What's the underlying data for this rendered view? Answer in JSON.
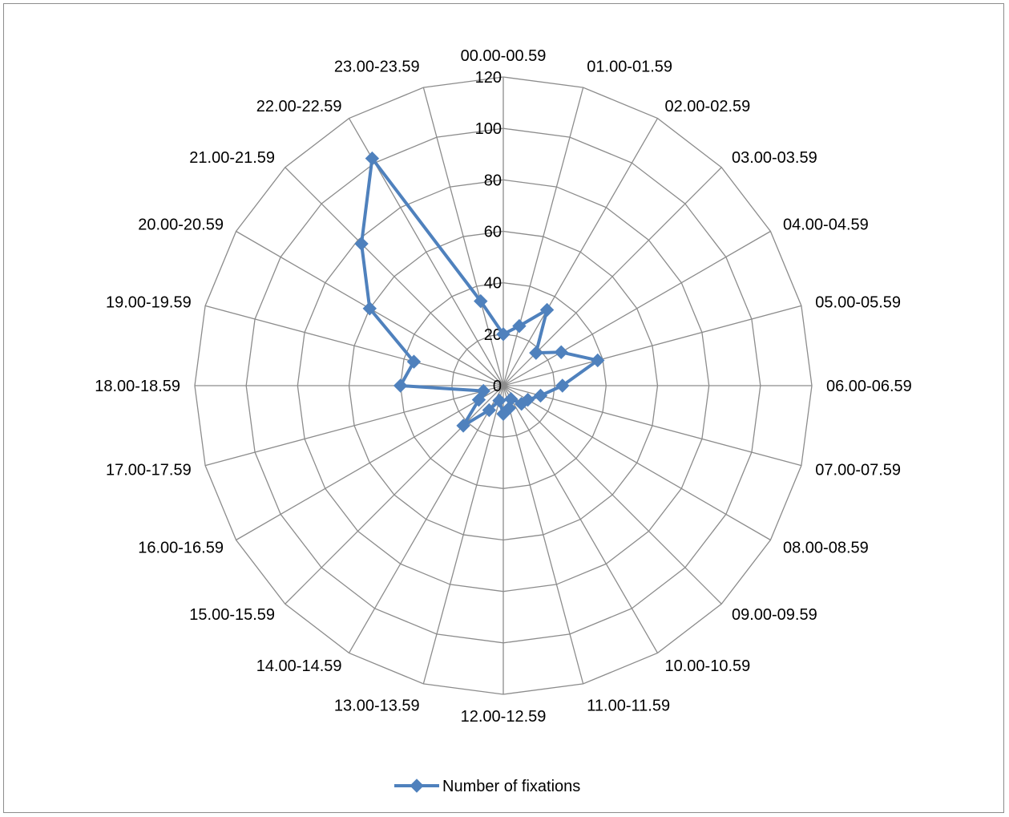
{
  "chart_data": {
    "type": "radar",
    "categories": [
      "00.00-00.59",
      "01.00-01.59",
      "02.00-02.59",
      "03.00-03.59",
      "04.00-04.59",
      "05.00-05.59",
      "06.00-06.59",
      "07.00-07.59",
      "08.00-08.59",
      "09.00-09.59",
      "10.00-10.59",
      "11.00-11.59",
      "12.00-12.59",
      "13.00-13.59",
      "14.00-14.59",
      "15.00-15.59",
      "16.00-16.59",
      "17.00-17.59",
      "18.00-18.59",
      "19.00-19.59",
      "20.00-20.59",
      "21.00-21.59",
      "22.00-22.59",
      "23.00-23.59"
    ],
    "series": [
      {
        "name": "Number of fixations",
        "color": "#4F81BD",
        "marker": "diamond",
        "values": [
          20,
          24,
          34,
          18,
          26,
          38,
          23,
          15,
          11,
          10,
          6,
          9,
          11,
          6,
          11,
          22,
          11,
          8,
          40,
          36,
          60,
          78,
          102,
          34
        ]
      }
    ],
    "rlim": [
      0,
      120
    ],
    "r_ticks": [
      "0",
      "20",
      "40",
      "60",
      "80",
      "100",
      "120"
    ],
    "grid": true,
    "legend_position": "bottom"
  }
}
